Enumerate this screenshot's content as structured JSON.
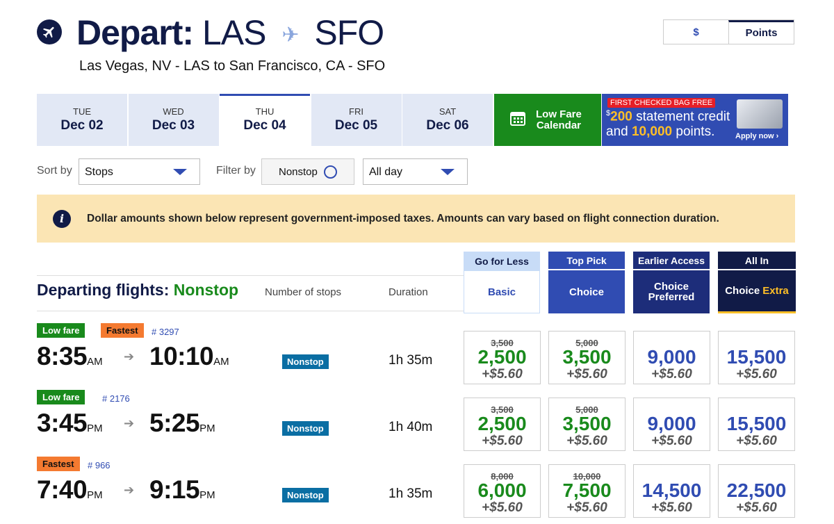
{
  "header": {
    "title_bold": "Depart:",
    "origin": "LAS",
    "destination": "SFO",
    "subtitle": "Las Vegas, NV - LAS to San Francisco, CA - SFO"
  },
  "currency_toggle": {
    "dollar": "$",
    "points": "Points",
    "selected": "Points"
  },
  "date_tabs": [
    {
      "dow": "TUE",
      "date": "Dec 02"
    },
    {
      "dow": "WED",
      "date": "Dec 03"
    },
    {
      "dow": "THU",
      "date": "Dec 04"
    },
    {
      "dow": "FRI",
      "date": "Dec 05"
    },
    {
      "dow": "SAT",
      "date": "Dec 06"
    }
  ],
  "low_fare_calendar": {
    "line1": "Low Fare",
    "line2": "Calendar"
  },
  "promo": {
    "badge": "FIRST CHECKED BAG FREE",
    "dollar_sign": "$",
    "amount": "200",
    "line1_rest": " statement credit",
    "line2_a": "and ",
    "line2_b": "10,000",
    "line2_c": " points.",
    "apply": "Apply now"
  },
  "controls": {
    "sort_label": "Sort by",
    "sort_value": "Stops",
    "filter_label": "Filter by",
    "filter_value": "Nonstop",
    "time_value": "All day"
  },
  "notice": "Dollar amounts shown below represent government-imposed taxes. Amounts can vary based on flight connection duration.",
  "list_header": {
    "title": "Departing flights:",
    "filter": "Nonstop",
    "col_stops": "Number of stops",
    "col_duration": "Duration"
  },
  "fare_classes": [
    {
      "top": "Go for Less",
      "name": "Basic"
    },
    {
      "top": "Top Pick",
      "name": "Choice"
    },
    {
      "top": "Earlier Access",
      "name_l1": "Choice",
      "name_l2": "Preferred"
    },
    {
      "top": "All In",
      "name_a": "Choice",
      "name_b": "Extra"
    }
  ],
  "flights": [
    {
      "tags": [
        "Low fare",
        "Fastest"
      ],
      "number": "# 3297",
      "dep_time": "8:35",
      "dep_ampm": "AM",
      "arr_time": "10:10",
      "arr_ampm": "AM",
      "stops": "Nonstop",
      "duration": "1h 35m",
      "fares": [
        {
          "original": "3,500",
          "points": "2,500",
          "tax": "+$5.60"
        },
        {
          "original": "5,000",
          "points": "3,500",
          "tax": "+$5.60"
        },
        {
          "points": "9,000",
          "tax": "+$5.60"
        },
        {
          "points": "15,500",
          "tax": "+$5.60"
        }
      ]
    },
    {
      "tags": [
        "Low fare"
      ],
      "number": "# 2176",
      "dep_time": "3:45",
      "dep_ampm": "PM",
      "arr_time": "5:25",
      "arr_ampm": "PM",
      "stops": "Nonstop",
      "duration": "1h 40m",
      "fares": [
        {
          "original": "3,500",
          "points": "2,500",
          "tax": "+$5.60"
        },
        {
          "original": "5,000",
          "points": "3,500",
          "tax": "+$5.60"
        },
        {
          "points": "9,000",
          "tax": "+$5.60"
        },
        {
          "points": "15,500",
          "tax": "+$5.60"
        }
      ]
    },
    {
      "tags": [
        "Fastest"
      ],
      "number": "# 966",
      "dep_time": "7:40",
      "dep_ampm": "PM",
      "arr_time": "9:15",
      "arr_ampm": "PM",
      "stops": "Nonstop",
      "duration": "1h 35m",
      "fares": [
        {
          "original": "8,000",
          "points": "6,000",
          "tax": "+$5.60"
        },
        {
          "original": "10,000",
          "points": "7,500",
          "tax": "+$5.60"
        },
        {
          "points": "14,500",
          "tax": "+$5.60"
        },
        {
          "points": "22,500",
          "tax": "+$5.60"
        }
      ]
    }
  ],
  "colors": {
    "navy": "#111b47",
    "brand_blue": "#304cb2",
    "green": "#198a1c",
    "orange": "#f47a30",
    "yellow": "#ffbf27",
    "notice_bg": "#fbe5b4"
  }
}
